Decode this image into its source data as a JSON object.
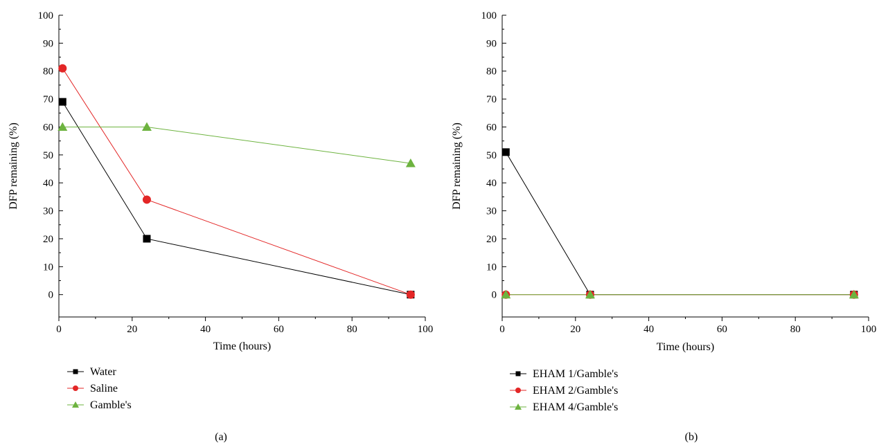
{
  "chart_data": [
    {
      "type": "line",
      "panel_label": "(a)",
      "xlabel": "Time (hours)",
      "ylabel": "DFP remaining (%)",
      "xlim": [
        0,
        100
      ],
      "ylim": [
        -8,
        100
      ],
      "x_ticks": [
        "0",
        "20",
        "40",
        "60",
        "80",
        "100"
      ],
      "y_ticks": [
        "0",
        "10",
        "20",
        "30",
        "40",
        "50",
        "60",
        "70",
        "80",
        "90",
        "100"
      ],
      "legend_position": "below-left",
      "series": [
        {
          "name": "Water",
          "marker": "square",
          "color": "#000000",
          "x": [
            1,
            24,
            96
          ],
          "y": [
            69,
            20,
            0
          ]
        },
        {
          "name": "Saline",
          "marker": "circle",
          "color": "#e32626",
          "x": [
            1,
            24,
            96
          ],
          "y": [
            81,
            34,
            0
          ]
        },
        {
          "name": "Gamble's",
          "marker": "triangle",
          "color": "#6db33f",
          "x": [
            1,
            24,
            96
          ],
          "y": [
            60,
            60,
            47
          ]
        }
      ]
    },
    {
      "type": "line",
      "panel_label": "(b)",
      "xlabel": "Time (hours)",
      "ylabel": "DFP remaining (%)",
      "xlim": [
        0,
        100
      ],
      "ylim": [
        -8,
        100
      ],
      "x_ticks": [
        "0",
        "20",
        "40",
        "60",
        "80",
        "100"
      ],
      "y_ticks": [
        "0",
        "10",
        "20",
        "30",
        "40",
        "50",
        "60",
        "70",
        "80",
        "90",
        "100"
      ],
      "legend_position": "below-left",
      "series": [
        {
          "name": "EHAM 1/Gamble's",
          "marker": "square",
          "color": "#000000",
          "x": [
            1,
            24,
            96
          ],
          "y": [
            51,
            0,
            0
          ]
        },
        {
          "name": "EHAM 2/Gamble's",
          "marker": "circle",
          "color": "#e32626",
          "x": [
            1,
            24,
            96
          ],
          "y": [
            0,
            0,
            0
          ]
        },
        {
          "name": "EHAM 4/Gamble's",
          "marker": "triangle",
          "color": "#6db33f",
          "x": [
            1,
            24,
            96
          ],
          "y": [
            0,
            0,
            0
          ]
        }
      ]
    }
  ]
}
